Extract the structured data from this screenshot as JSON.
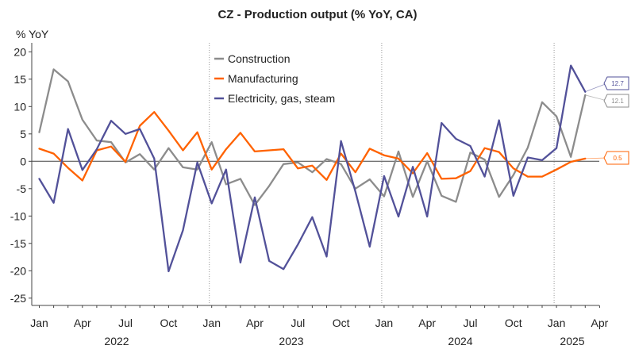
{
  "chart_data": {
    "type": "line",
    "title": "CZ - Production output (% YoY, CA)",
    "ylabel": "% YoY",
    "xlabel": "",
    "ylim": [
      -27,
      21
    ],
    "yticks": [
      20,
      15,
      10,
      5,
      0,
      -5,
      -10,
      -15,
      -20,
      -25
    ],
    "x_ticks": [
      "Jan",
      "Apr",
      "Jul",
      "Oct",
      "Jan",
      "Apr",
      "Jul",
      "Oct",
      "Jan",
      "Apr",
      "Jul",
      "Oct",
      "Jan",
      "Apr"
    ],
    "years": [
      "2022",
      "2023",
      "2024",
      "2025"
    ],
    "grid": false,
    "legend_position": "top-center",
    "x": [
      "Jan 2022",
      "Feb 2022",
      "Mar 2022",
      "Apr 2022",
      "May 2022",
      "Jun 2022",
      "Jul 2022",
      "Aug 2022",
      "Sep 2022",
      "Oct 2022",
      "Nov 2022",
      "Dec 2022",
      "Jan 2023",
      "Feb 2023",
      "Mar 2023",
      "Apr 2023",
      "May 2023",
      "Jun 2023",
      "Jul 2023",
      "Aug 2023",
      "Sep 2023",
      "Oct 2023",
      "Nov 2023",
      "Dec 2023",
      "Jan 2024",
      "Feb 2024",
      "Mar 2024",
      "Apr 2024",
      "May 2024",
      "Jun 2024",
      "Jul 2024",
      "Aug 2024",
      "Sep 2024",
      "Oct 2024",
      "Nov 2024",
      "Dec 2024",
      "Jan 2025",
      "Feb 2025",
      "Mar 2025"
    ],
    "series": [
      {
        "name": "Construction",
        "color": "#8c8c8c",
        "values": [
          5.3,
          16.8,
          14.6,
          7.6,
          3.8,
          3.5,
          -0.2,
          1.3,
          -1.5,
          2.4,
          -1.1,
          -1.5,
          3.5,
          -4.2,
          -3.2,
          -8.0,
          -4.5,
          -0.5,
          -0.2,
          -2.0,
          0.4,
          -0.5,
          -5.0,
          -3.3,
          -6.4,
          1.8,
          -6.5,
          0.0,
          -6.3,
          -7.4,
          1.6,
          0.3,
          -6.5,
          -2.5,
          2.5,
          10.8,
          8.2,
          0.8,
          12.1
        ],
        "end_label": "12.1"
      },
      {
        "name": "Manufacturing",
        "color": "#ff6200",
        "values": [
          2.3,
          1.4,
          -1.2,
          -3.5,
          2.0,
          2.7,
          -0.1,
          6.5,
          9.0,
          5.6,
          2.0,
          5.3,
          -1.5,
          2.2,
          5.2,
          1.8,
          2.0,
          2.2,
          -1.3,
          -0.8,
          -3.4,
          1.4,
          -2.0,
          2.3,
          1.1,
          0.5,
          -2.2,
          1.5,
          -3.2,
          -3.1,
          -1.8,
          2.4,
          1.7,
          -1.3,
          -2.8,
          -2.8,
          -1.5,
          -0.1,
          0.5
        ],
        "end_label": "0.5"
      },
      {
        "name": "Electricity, gas, steam",
        "color": "#525199",
        "values": [
          -3.2,
          -7.6,
          5.9,
          -1.6,
          2.2,
          7.4,
          5.0,
          5.9,
          0.5,
          -20.1,
          -12.6,
          -0.2,
          -7.7,
          -1.5,
          -18.5,
          -6.6,
          -18.2,
          -19.7,
          -15.2,
          -10.2,
          -17.4,
          3.7,
          -5.5,
          -15.6,
          -2.7,
          -10.1,
          -1.0,
          -10.1,
          7.0,
          4.1,
          2.8,
          -2.8,
          7.5,
          -6.3,
          0.7,
          0.2,
          2.4,
          17.5,
          12.7
        ],
        "end_label": "12.7"
      }
    ]
  }
}
